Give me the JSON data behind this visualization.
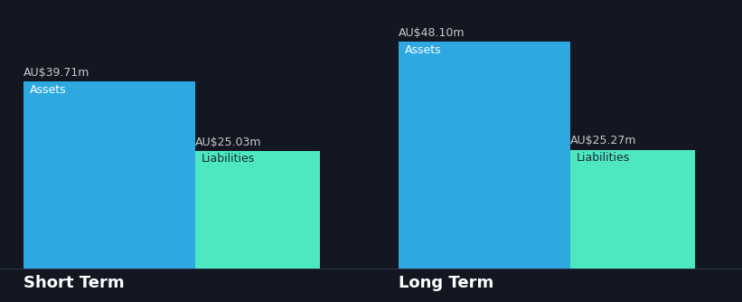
{
  "background_color": "#131722",
  "groups": [
    {
      "label": "Short Term",
      "assets_value": 39.71,
      "assets_label": "AU$39.71m",
      "liabilities_value": 25.03,
      "liabilities_label": "AU$25.03m"
    },
    {
      "label": "Long Term",
      "assets_value": 48.1,
      "assets_label": "AU$48.10m",
      "liabilities_value": 25.27,
      "liabilities_label": "AU$25.27m"
    }
  ],
  "assets_color": "#2da8e0",
  "liabilities_color": "#4de8c2",
  "assets_text": "Assets",
  "liabilities_text": "Liabilities",
  "label_color_assets": "#ffffff",
  "label_color_liabilities": "#1a2a35",
  "value_label_color": "#c8c8c8",
  "group_label_color": "#ffffff",
  "value_label_fontsize": 9,
  "bar_label_fontsize": 9,
  "group_label_fontsize": 13,
  "baseline_color": "#2a3348"
}
